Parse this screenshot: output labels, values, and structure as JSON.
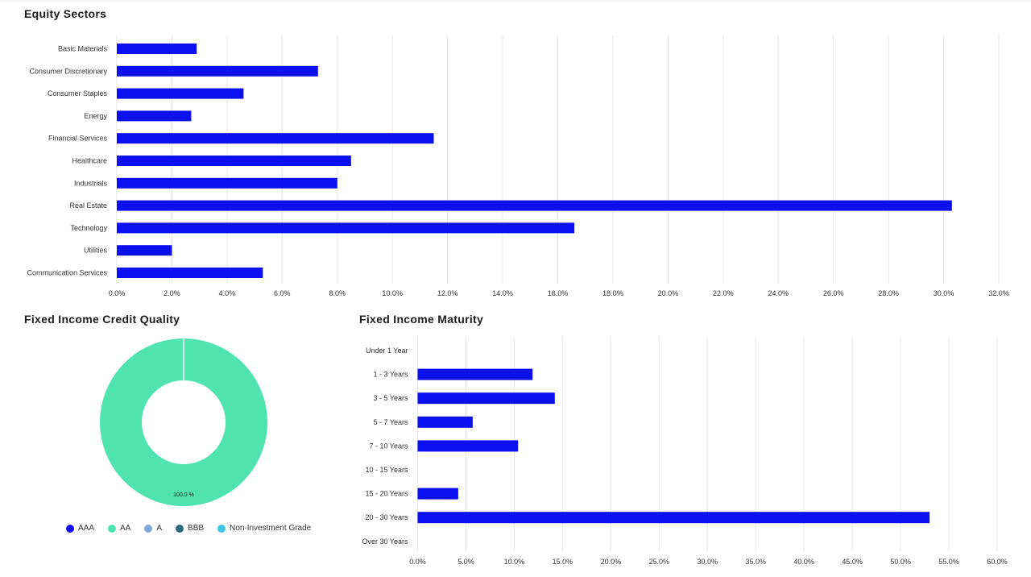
{
  "panels": {
    "equity_title": "Equity Sectors",
    "credit_title": "Fixed Income Credit Quality",
    "maturity_title": "Fixed Income Maturity"
  },
  "colors": {
    "bar": "#0c0ff0",
    "grid": "#e6e6e6",
    "donut_aa": "#4fe3b0"
  },
  "chart_data": [
    {
      "id": "equity",
      "type": "bar",
      "orientation": "horizontal",
      "title": "Equity Sectors",
      "categories": [
        "Basic Materials",
        "Consumer Discretionary",
        "Consumer Staples",
        "Energy",
        "Financial Services",
        "Healthcare",
        "Industrials",
        "Real Estate",
        "Technology",
        "Utilities",
        "Communication Services"
      ],
      "values": [
        2.9,
        7.3,
        4.6,
        2.7,
        11.5,
        8.5,
        8.0,
        30.3,
        16.6,
        2.0,
        5.3
      ],
      "xlim": [
        0,
        32
      ],
      "ticks": [
        "0.0%",
        "2.0%",
        "4.0%",
        "6.0%",
        "8.0%",
        "10.0%",
        "12.0%",
        "14.0%",
        "16.0%",
        "18.0%",
        "20.0%",
        "22.0%",
        "24.0%",
        "26.0%",
        "28.0%",
        "30.0%",
        "32.0%"
      ],
      "grid": true
    },
    {
      "id": "credit",
      "type": "pie",
      "title": "Fixed Income Credit Quality",
      "slices": [
        {
          "label": "AAA",
          "value": 0,
          "color": "#0c0ff0"
        },
        {
          "label": "AA",
          "value": 100.0,
          "color": "#4fe3b0"
        },
        {
          "label": "A",
          "value": 0,
          "color": "#7fa9d6"
        },
        {
          "label": "BBB",
          "value": 0,
          "color": "#2a6a80"
        },
        {
          "label": "Non-Investment Grade",
          "value": 0,
          "color": "#3cc8e6"
        }
      ],
      "data_label": "100.0 %",
      "legend": "bottom"
    },
    {
      "id": "maturity",
      "type": "bar",
      "orientation": "horizontal",
      "title": "Fixed Income Maturity",
      "categories": [
        "Under 1 Year",
        "1 - 3 Years",
        "3 - 5 Years",
        "5 - 7 Years",
        "7 - 10 Years",
        "10 - 15 Years",
        "15 - 20 Years",
        "20 - 30 Years",
        "Over 30 Years"
      ],
      "values": [
        0,
        11.9,
        14.2,
        5.7,
        10.4,
        0,
        4.2,
        53.0,
        0
      ],
      "xlim": [
        0,
        60
      ],
      "ticks": [
        "0.0%",
        "5.0%",
        "10.0%",
        "15.0%",
        "20.0%",
        "25.0%",
        "30.0%",
        "35.0%",
        "40.0%",
        "45.0%",
        "50.0%",
        "55.0%",
        "60.0%"
      ],
      "grid": true
    }
  ]
}
